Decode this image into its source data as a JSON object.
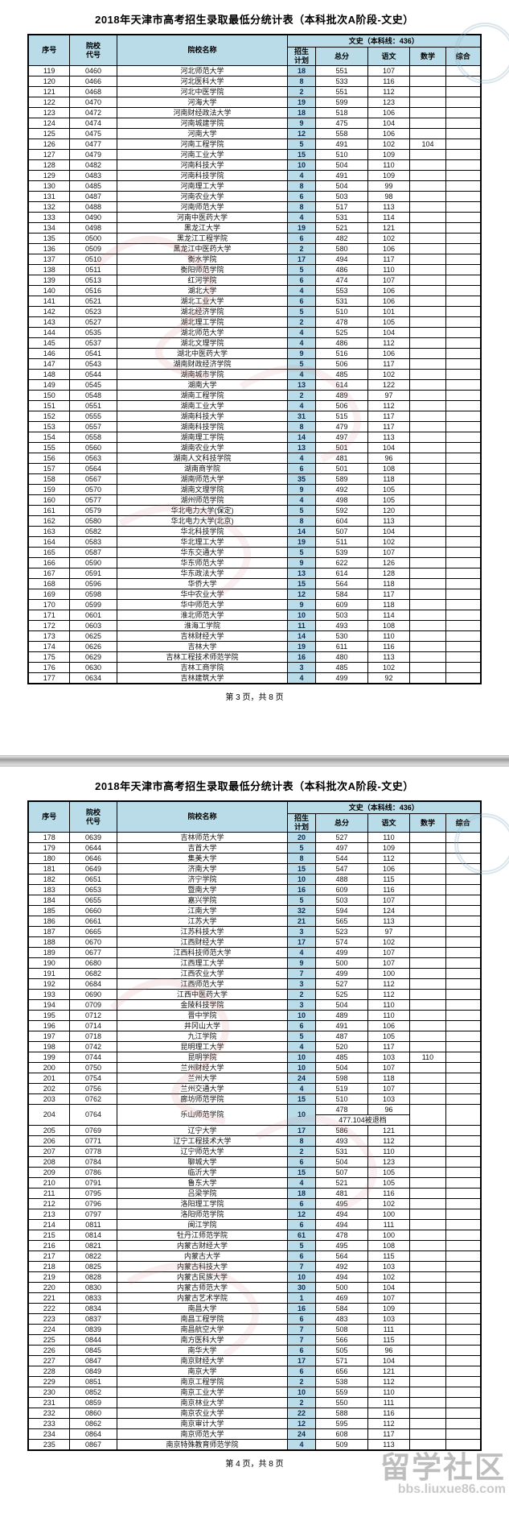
{
  "watermark": {
    "text": "留学社区",
    "url": "bbs.liuxue86.com"
  },
  "columns": {
    "seq": "序号",
    "code": "院校代号",
    "name": "院校名称",
    "group": "文史（本科线：436）",
    "plan": "招生计划",
    "total": "总分",
    "chinese": "语文",
    "math": "数学",
    "comp": "综合"
  },
  "pages": [
    {
      "title": "2018年天津市高考招生录取最低分统计表（本科批次A阶段-文史）",
      "footer": "第 3 页，共 8 页",
      "rows": [
        [
          "119",
          "0460",
          "河北师范大学",
          "18",
          "551",
          "107",
          "",
          ""
        ],
        [
          "120",
          "0466",
          "河北医科大学",
          "8",
          "533",
          "116",
          "",
          ""
        ],
        [
          "121",
          "0468",
          "河北中医学院",
          "2",
          "551",
          "112",
          "",
          ""
        ],
        [
          "122",
          "0470",
          "河海大学",
          "19",
          "599",
          "123",
          "",
          ""
        ],
        [
          "123",
          "0472",
          "河南财经政法大学",
          "18",
          "518",
          "106",
          "",
          ""
        ],
        [
          "124",
          "0474",
          "河南城建学院",
          "9",
          "475",
          "104",
          "",
          ""
        ],
        [
          "125",
          "0475",
          "河南大学",
          "12",
          "558",
          "106",
          "",
          ""
        ],
        [
          "126",
          "0477",
          "河南工程学院",
          "5",
          "491",
          "102",
          "104",
          ""
        ],
        [
          "127",
          "0479",
          "河南工业大学",
          "15",
          "510",
          "109",
          "",
          ""
        ],
        [
          "128",
          "0482",
          "河南科技大学",
          "10",
          "504",
          "110",
          "",
          ""
        ],
        [
          "129",
          "0483",
          "河南科技学院",
          "4",
          "491",
          "109",
          "",
          ""
        ],
        [
          "130",
          "0485",
          "河南理工大学",
          "8",
          "504",
          "99",
          "",
          ""
        ],
        [
          "131",
          "0487",
          "河南农业大学",
          "6",
          "503",
          "98",
          "",
          ""
        ],
        [
          "132",
          "0488",
          "河南师范大学",
          "8",
          "517",
          "113",
          "",
          ""
        ],
        [
          "133",
          "0490",
          "河南中医药大学",
          "4",
          "531",
          "114",
          "",
          ""
        ],
        [
          "134",
          "0498",
          "黑龙江大学",
          "19",
          "521",
          "121",
          "",
          ""
        ],
        [
          "135",
          "0500",
          "黑龙江工程学院",
          "6",
          "482",
          "102",
          "",
          ""
        ],
        [
          "136",
          "0509",
          "黑龙江中医药大学",
          "2",
          "580",
          "106",
          "",
          ""
        ],
        [
          "137",
          "0510",
          "衡水学院",
          "17",
          "494",
          "117",
          "",
          ""
        ],
        [
          "138",
          "0511",
          "衡阳师范学院",
          "5",
          "486",
          "110",
          "",
          ""
        ],
        [
          "139",
          "0513",
          "红河学院",
          "6",
          "474",
          "107",
          "",
          ""
        ],
        [
          "140",
          "0516",
          "湖北大学",
          "4",
          "553",
          "106",
          "",
          ""
        ],
        [
          "141",
          "0521",
          "湖北工业大学",
          "6",
          "531",
          "106",
          "",
          ""
        ],
        [
          "142",
          "0523",
          "湖北经济学院",
          "5",
          "510",
          "101",
          "",
          ""
        ],
        [
          "143",
          "0527",
          "湖北理工学院",
          "2",
          "478",
          "105",
          "",
          ""
        ],
        [
          "144",
          "0535",
          "湖北师范大学",
          "4",
          "525",
          "104",
          "",
          ""
        ],
        [
          "145",
          "0537",
          "湖北文理学院",
          "4",
          "486",
          "112",
          "",
          ""
        ],
        [
          "146",
          "0541",
          "湖北中医药大学",
          "9",
          "516",
          "106",
          "",
          ""
        ],
        [
          "147",
          "0543",
          "湖南财政经济学院",
          "5",
          "506",
          "117",
          "",
          ""
        ],
        [
          "148",
          "0544",
          "湖南城市学院",
          "4",
          "485",
          "102",
          "",
          ""
        ],
        [
          "149",
          "0545",
          "湖南大学",
          "13",
          "614",
          "122",
          "",
          ""
        ],
        [
          "150",
          "0548",
          "湖南工程学院",
          "2",
          "489",
          "97",
          "",
          ""
        ],
        [
          "151",
          "0551",
          "湖南工业大学",
          "4",
          "506",
          "112",
          "",
          ""
        ],
        [
          "152",
          "0555",
          "湖南科技大学",
          "31",
          "515",
          "117",
          "",
          ""
        ],
        [
          "153",
          "0557",
          "湖南科技学院",
          "8",
          "479",
          "117",
          "",
          ""
        ],
        [
          "154",
          "0558",
          "湖南理工学院",
          "14",
          "497",
          "113",
          "",
          ""
        ],
        [
          "155",
          "0560",
          "湖南农业大学",
          "13",
          "501",
          "104",
          "",
          ""
        ],
        [
          "156",
          "0563",
          "湖南人文科技学院",
          "4",
          "481",
          "96",
          "",
          ""
        ],
        [
          "157",
          "0564",
          "湖南商学院",
          "6",
          "501",
          "108",
          "",
          ""
        ],
        [
          "158",
          "0567",
          "湖南师范大学",
          "35",
          "589",
          "118",
          "",
          ""
        ],
        [
          "159",
          "0570",
          "湖南文理学院",
          "9",
          "492",
          "105",
          "",
          ""
        ],
        [
          "160",
          "0577",
          "湖州师范学院",
          "4",
          "498",
          "105",
          "",
          ""
        ],
        [
          "161",
          "0579",
          "华北电力大学(保定)",
          "5",
          "592",
          "120",
          "",
          ""
        ],
        [
          "162",
          "0580",
          "华北电力大学(北京)",
          "8",
          "604",
          "113",
          "",
          ""
        ],
        [
          "163",
          "0582",
          "华北科技学院",
          "14",
          "507",
          "104",
          "",
          ""
        ],
        [
          "164",
          "0583",
          "华北理工大学",
          "19",
          "511",
          "102",
          "",
          ""
        ],
        [
          "165",
          "0587",
          "华东交通大学",
          "5",
          "539",
          "107",
          "",
          ""
        ],
        [
          "166",
          "0590",
          "华东师范大学",
          "9",
          "622",
          "126",
          "",
          ""
        ],
        [
          "167",
          "0591",
          "华东政法大学",
          "13",
          "614",
          "128",
          "",
          ""
        ],
        [
          "168",
          "0596",
          "华侨大学",
          "15",
          "564",
          "118",
          "",
          ""
        ],
        [
          "169",
          "0598",
          "华中农业大学",
          "12",
          "584",
          "117",
          "",
          ""
        ],
        [
          "170",
          "0599",
          "华中师范大学",
          "9",
          "609",
          "118",
          "",
          ""
        ],
        [
          "171",
          "0601",
          "淮北师范大学",
          "10",
          "503",
          "114",
          "",
          ""
        ],
        [
          "172",
          "0603",
          "淮海工学院",
          "11",
          "493",
          "108",
          "",
          ""
        ],
        [
          "173",
          "0625",
          "吉林财经大学",
          "14",
          "530",
          "110",
          "",
          ""
        ],
        [
          "174",
          "0626",
          "吉林大学",
          "19",
          "611",
          "116",
          "",
          ""
        ],
        [
          "175",
          "0629",
          "吉林工程技术师范学院",
          "16",
          "480",
          "113",
          "",
          ""
        ],
        [
          "176",
          "0630",
          "吉林工商学院",
          "3",
          "485",
          "102",
          "",
          ""
        ],
        [
          "177",
          "0634",
          "吉林建筑大学",
          "4",
          "499",
          "92",
          "",
          ""
        ]
      ]
    },
    {
      "title": "2018年天津市高考招生录取最低分统计表（本科批次A阶段-文史）",
      "footer": "第 4 页，共 8 页",
      "rows": [
        [
          "178",
          "0639",
          "吉林师范大学",
          "20",
          "527",
          "110",
          "",
          ""
        ],
        [
          "179",
          "0644",
          "吉首大学",
          "5",
          "497",
          "109",
          "",
          ""
        ],
        [
          "180",
          "0646",
          "集美大学",
          "8",
          "544",
          "112",
          "",
          ""
        ],
        [
          "181",
          "0649",
          "济南大学",
          "15",
          "547",
          "106",
          "",
          ""
        ],
        [
          "182",
          "0651",
          "济宁学院",
          "10",
          "488",
          "115",
          "",
          ""
        ],
        [
          "183",
          "0653",
          "暨南大学",
          "16",
          "609",
          "116",
          "",
          ""
        ],
        [
          "184",
          "0655",
          "嘉兴学院",
          "5",
          "503",
          "107",
          "",
          ""
        ],
        [
          "185",
          "0660",
          "江南大学",
          "32",
          "594",
          "124",
          "",
          ""
        ],
        [
          "186",
          "0661",
          "江苏大学",
          "21",
          "565",
          "113",
          "",
          ""
        ],
        [
          "187",
          "0665",
          "江苏科技大学",
          "3",
          "523",
          "97",
          "",
          ""
        ],
        [
          "188",
          "0670",
          "江西财经大学",
          "17",
          "574",
          "102",
          "",
          ""
        ],
        [
          "189",
          "0677",
          "江西科技师范大学",
          "4",
          "499",
          "107",
          "",
          ""
        ],
        [
          "190",
          "0680",
          "江西理工大学",
          "9",
          "500",
          "107",
          "",
          ""
        ],
        [
          "191",
          "0682",
          "江西农业大学",
          "7",
          "499",
          "100",
          "",
          ""
        ],
        [
          "192",
          "0684",
          "江西师范大学",
          "3",
          "527",
          "112",
          "",
          ""
        ],
        [
          "193",
          "0690",
          "江西中医药大学",
          "2",
          "525",
          "112",
          "",
          ""
        ],
        [
          "194",
          "0709",
          "金陵科技学院",
          "3",
          "504",
          "110",
          "",
          ""
        ],
        [
          "195",
          "0712",
          "晋中学院",
          "10",
          "489",
          "110",
          "",
          ""
        ],
        [
          "196",
          "0714",
          "井冈山大学",
          "6",
          "491",
          "106",
          "",
          ""
        ],
        [
          "197",
          "0718",
          "九江学院",
          "5",
          "487",
          "105",
          "",
          ""
        ],
        [
          "198",
          "0742",
          "昆明理工大学",
          "4",
          "520",
          "117",
          "",
          ""
        ],
        [
          "199",
          "0744",
          "昆明学院",
          "10",
          "485",
          "103",
          "110",
          ""
        ],
        [
          "200",
          "0750",
          "兰州财经大学",
          "10",
          "504",
          "107",
          "",
          ""
        ],
        [
          "201",
          "0754",
          "兰州大学",
          "24",
          "598",
          "118",
          "",
          ""
        ],
        [
          "202",
          "0756",
          "兰州交通大学",
          "4",
          "519",
          "107",
          "",
          ""
        ],
        [
          "203",
          "0762",
          "廊坊师范学院",
          "15",
          "510",
          "103",
          "",
          ""
        ],
        {
          "cells": [
            "204",
            "0764",
            "乐山师范学院",
            "10",
            "478",
            "96",
            "",
            ""
          ],
          "note": "477.104被退档"
        },
        [
          "205",
          "0769",
          "辽宁大学",
          "17",
          "586",
          "121",
          "",
          ""
        ],
        [
          "206",
          "0771",
          "辽宁工程技术大学",
          "8",
          "493",
          "112",
          "",
          ""
        ],
        [
          "207",
          "0778",
          "辽宁师范大学",
          "2",
          "531",
          "110",
          "",
          ""
        ],
        [
          "208",
          "0784",
          "聊城大学",
          "6",
          "504",
          "123",
          "",
          ""
        ],
        [
          "209",
          "0786",
          "临沂大学",
          "15",
          "507",
          "105",
          "",
          ""
        ],
        [
          "210",
          "0791",
          "鲁东大学",
          "4",
          "521",
          "105",
          "",
          ""
        ],
        [
          "211",
          "0795",
          "吕梁学院",
          "18",
          "481",
          "116",
          "",
          ""
        ],
        [
          "212",
          "0796",
          "洛阳理工学院",
          "6",
          "495",
          "102",
          "",
          ""
        ],
        [
          "213",
          "0797",
          "洛阳师范学院",
          "12",
          "494",
          "100",
          "",
          ""
        ],
        [
          "214",
          "0811",
          "闽江学院",
          "6",
          "494",
          "111",
          "",
          ""
        ],
        [
          "215",
          "0814",
          "牡丹江师范学院",
          "61",
          "478",
          "100",
          "",
          ""
        ],
        [
          "216",
          "0821",
          "内蒙古财经大学",
          "5",
          "495",
          "108",
          "",
          ""
        ],
        [
          "217",
          "0822",
          "内蒙古大学",
          "6",
          "564",
          "115",
          "",
          ""
        ],
        [
          "218",
          "0825",
          "内蒙古科技大学",
          "7",
          "492",
          "103",
          "",
          ""
        ],
        [
          "219",
          "0828",
          "内蒙古民族大学",
          "10",
          "494",
          "102",
          "",
          ""
        ],
        [
          "220",
          "0830",
          "内蒙古师范大学",
          "30",
          "500",
          "104",
          "",
          ""
        ],
        [
          "221",
          "0833",
          "内蒙古艺术学院",
          "1",
          "469",
          "107",
          "",
          ""
        ],
        [
          "222",
          "0834",
          "南昌大学",
          "16",
          "584",
          "109",
          "",
          ""
        ],
        [
          "223",
          "0837",
          "南昌工程学院",
          "6",
          "483",
          "103",
          "",
          ""
        ],
        [
          "224",
          "0839",
          "南昌航空大学",
          "7",
          "508",
          "111",
          "",
          ""
        ],
        [
          "225",
          "0844",
          "南方医科大学",
          "7",
          "566",
          "115",
          "",
          ""
        ],
        [
          "226",
          "0845",
          "南华大学",
          "6",
          "505",
          "96",
          "",
          ""
        ],
        [
          "227",
          "0847",
          "南京财经大学",
          "17",
          "571",
          "104",
          "",
          ""
        ],
        [
          "228",
          "0849",
          "南京大学",
          "6",
          "656",
          "121",
          "",
          ""
        ],
        [
          "229",
          "0851",
          "南京工程学院",
          "2",
          "538",
          "112",
          "",
          ""
        ],
        [
          "230",
          "0852",
          "南京工业大学",
          "10",
          "559",
          "110",
          "",
          ""
        ],
        [
          "231",
          "0859",
          "南京林业大学",
          "2",
          "550",
          "111",
          "",
          ""
        ],
        [
          "232",
          "0860",
          "南京农业大学",
          "22",
          "588",
          "116",
          "",
          ""
        ],
        [
          "233",
          "0862",
          "南京审计大学",
          "12",
          "595",
          "112",
          "",
          ""
        ],
        [
          "234",
          "0864",
          "南京师范大学",
          "24",
          "608",
          "117",
          "",
          ""
        ],
        [
          "235",
          "0867",
          "南京特殊教育师范学院",
          "4",
          "509",
          "113",
          "",
          ""
        ]
      ]
    }
  ]
}
